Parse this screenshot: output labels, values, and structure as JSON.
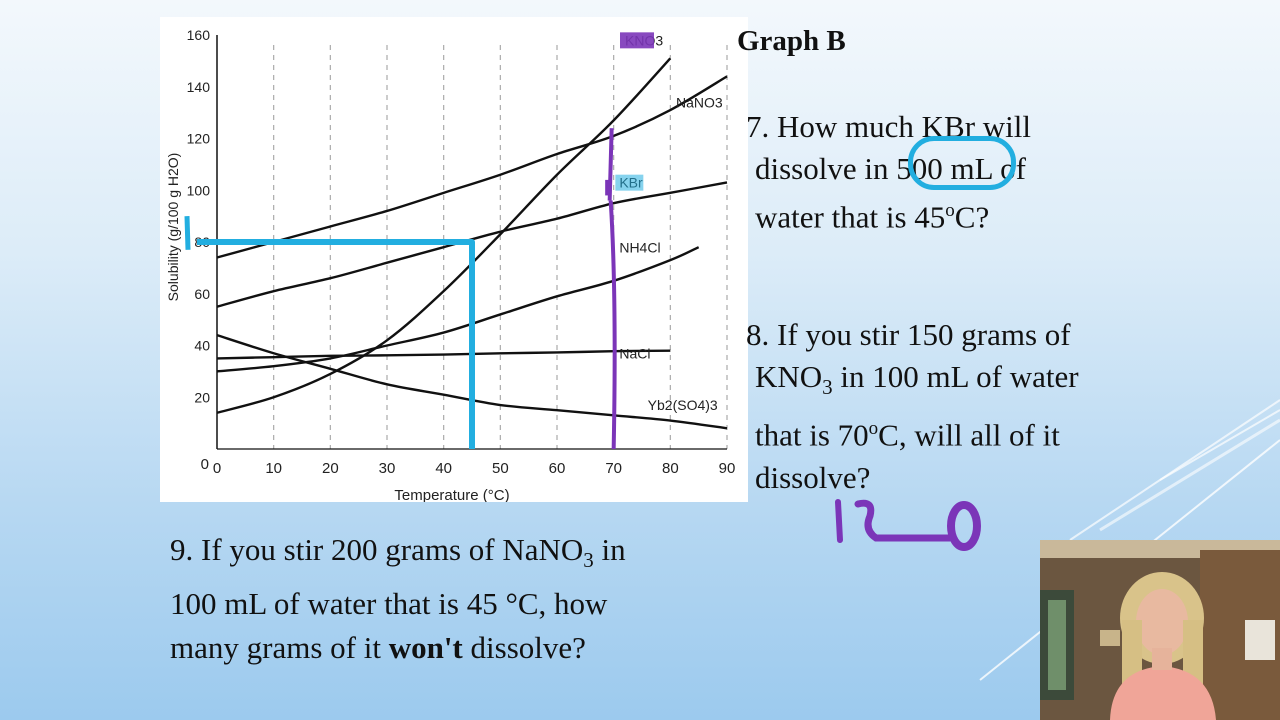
{
  "slide": {
    "title": "Graph B",
    "q7": {
      "line1": "7.  How much KBr will",
      "line2": "dissolve in 500 mL of",
      "line3_pre": "water that is 45",
      "line3_sup": "o",
      "line3_post": "C?"
    },
    "q8": {
      "line1": "8.  If you stir 150 grams of",
      "line2_pre": "KNO",
      "line2_sub": "3",
      "line2_post": " in 100 mL of water",
      "line3_pre": "that is 70",
      "line3_sup": "o",
      "line3_post": "C, will all of it",
      "line4": "dissolve?"
    },
    "q9": {
      "line1_pre": "9.  If you stir 200 grams of NaNO",
      "line1_sub": "3",
      "line1_post": " in",
      "line2": "100 mL of water that is 45 °C, how",
      "line3_pre": "many grams of it ",
      "line3_bold": "won't",
      "line3_post": " dissolve?"
    },
    "handwritten_answer": "120"
  },
  "colors": {
    "cyan_marker": "#22aee0",
    "purple_marker": "#7b35b8",
    "curve": "#111111"
  },
  "chart_data": {
    "type": "line",
    "xlabel": "Temperature (°C)",
    "ylabel": "Solubility (g/100 g H2O)",
    "xlim": [
      0,
      90
    ],
    "ylim": [
      0,
      160
    ],
    "xticks": [
      0,
      10,
      20,
      30,
      40,
      50,
      60,
      70,
      80,
      90
    ],
    "yticks": [
      20,
      40,
      60,
      80,
      100,
      120,
      140,
      160
    ],
    "grid": "vertical dashed",
    "series": [
      {
        "name": "KNO3",
        "x": [
          0,
          10,
          20,
          30,
          40,
          50,
          60,
          70,
          80
        ],
        "y": [
          14,
          20,
          29,
          42,
          61,
          83,
          106,
          127,
          151
        ]
      },
      {
        "name": "NaNO3",
        "x": [
          0,
          10,
          20,
          30,
          40,
          50,
          60,
          70,
          80,
          90
        ],
        "y": [
          74,
          80,
          86,
          92,
          99,
          106,
          114,
          121,
          131,
          144
        ]
      },
      {
        "name": "KBr",
        "x": [
          0,
          10,
          20,
          30,
          40,
          50,
          60,
          70,
          80,
          90
        ],
        "y": [
          55,
          61,
          66,
          72,
          78,
          84,
          89,
          95,
          99,
          103
        ]
      },
      {
        "name": "NH4Cl",
        "x": [
          0,
          10,
          20,
          30,
          40,
          50,
          60,
          70,
          80,
          85
        ],
        "y": [
          30,
          32,
          35,
          40,
          45,
          52,
          59,
          65,
          73,
          78
        ]
      },
      {
        "name": "NaCl",
        "x": [
          0,
          10,
          20,
          30,
          40,
          50,
          60,
          70,
          80
        ],
        "y": [
          35,
          35.5,
          36,
          36.2,
          36.5,
          37,
          37.3,
          37.8,
          38
        ]
      },
      {
        "name": "Yb2(SO4)3",
        "x": [
          0,
          10,
          20,
          30,
          40,
          50,
          60,
          70,
          80,
          90
        ],
        "y": [
          44,
          37,
          31,
          25,
          21,
          17,
          15,
          13,
          11,
          8
        ]
      }
    ],
    "series_labels": [
      "KNO3",
      "NaNO3",
      "KBr",
      "NH4Cl",
      "NaCl",
      "Yb2(SO4)3"
    ],
    "annotations": [
      {
        "type": "cyan guide",
        "x": 45,
        "y": 80
      },
      {
        "type": "purple guide",
        "x": 70
      }
    ]
  }
}
